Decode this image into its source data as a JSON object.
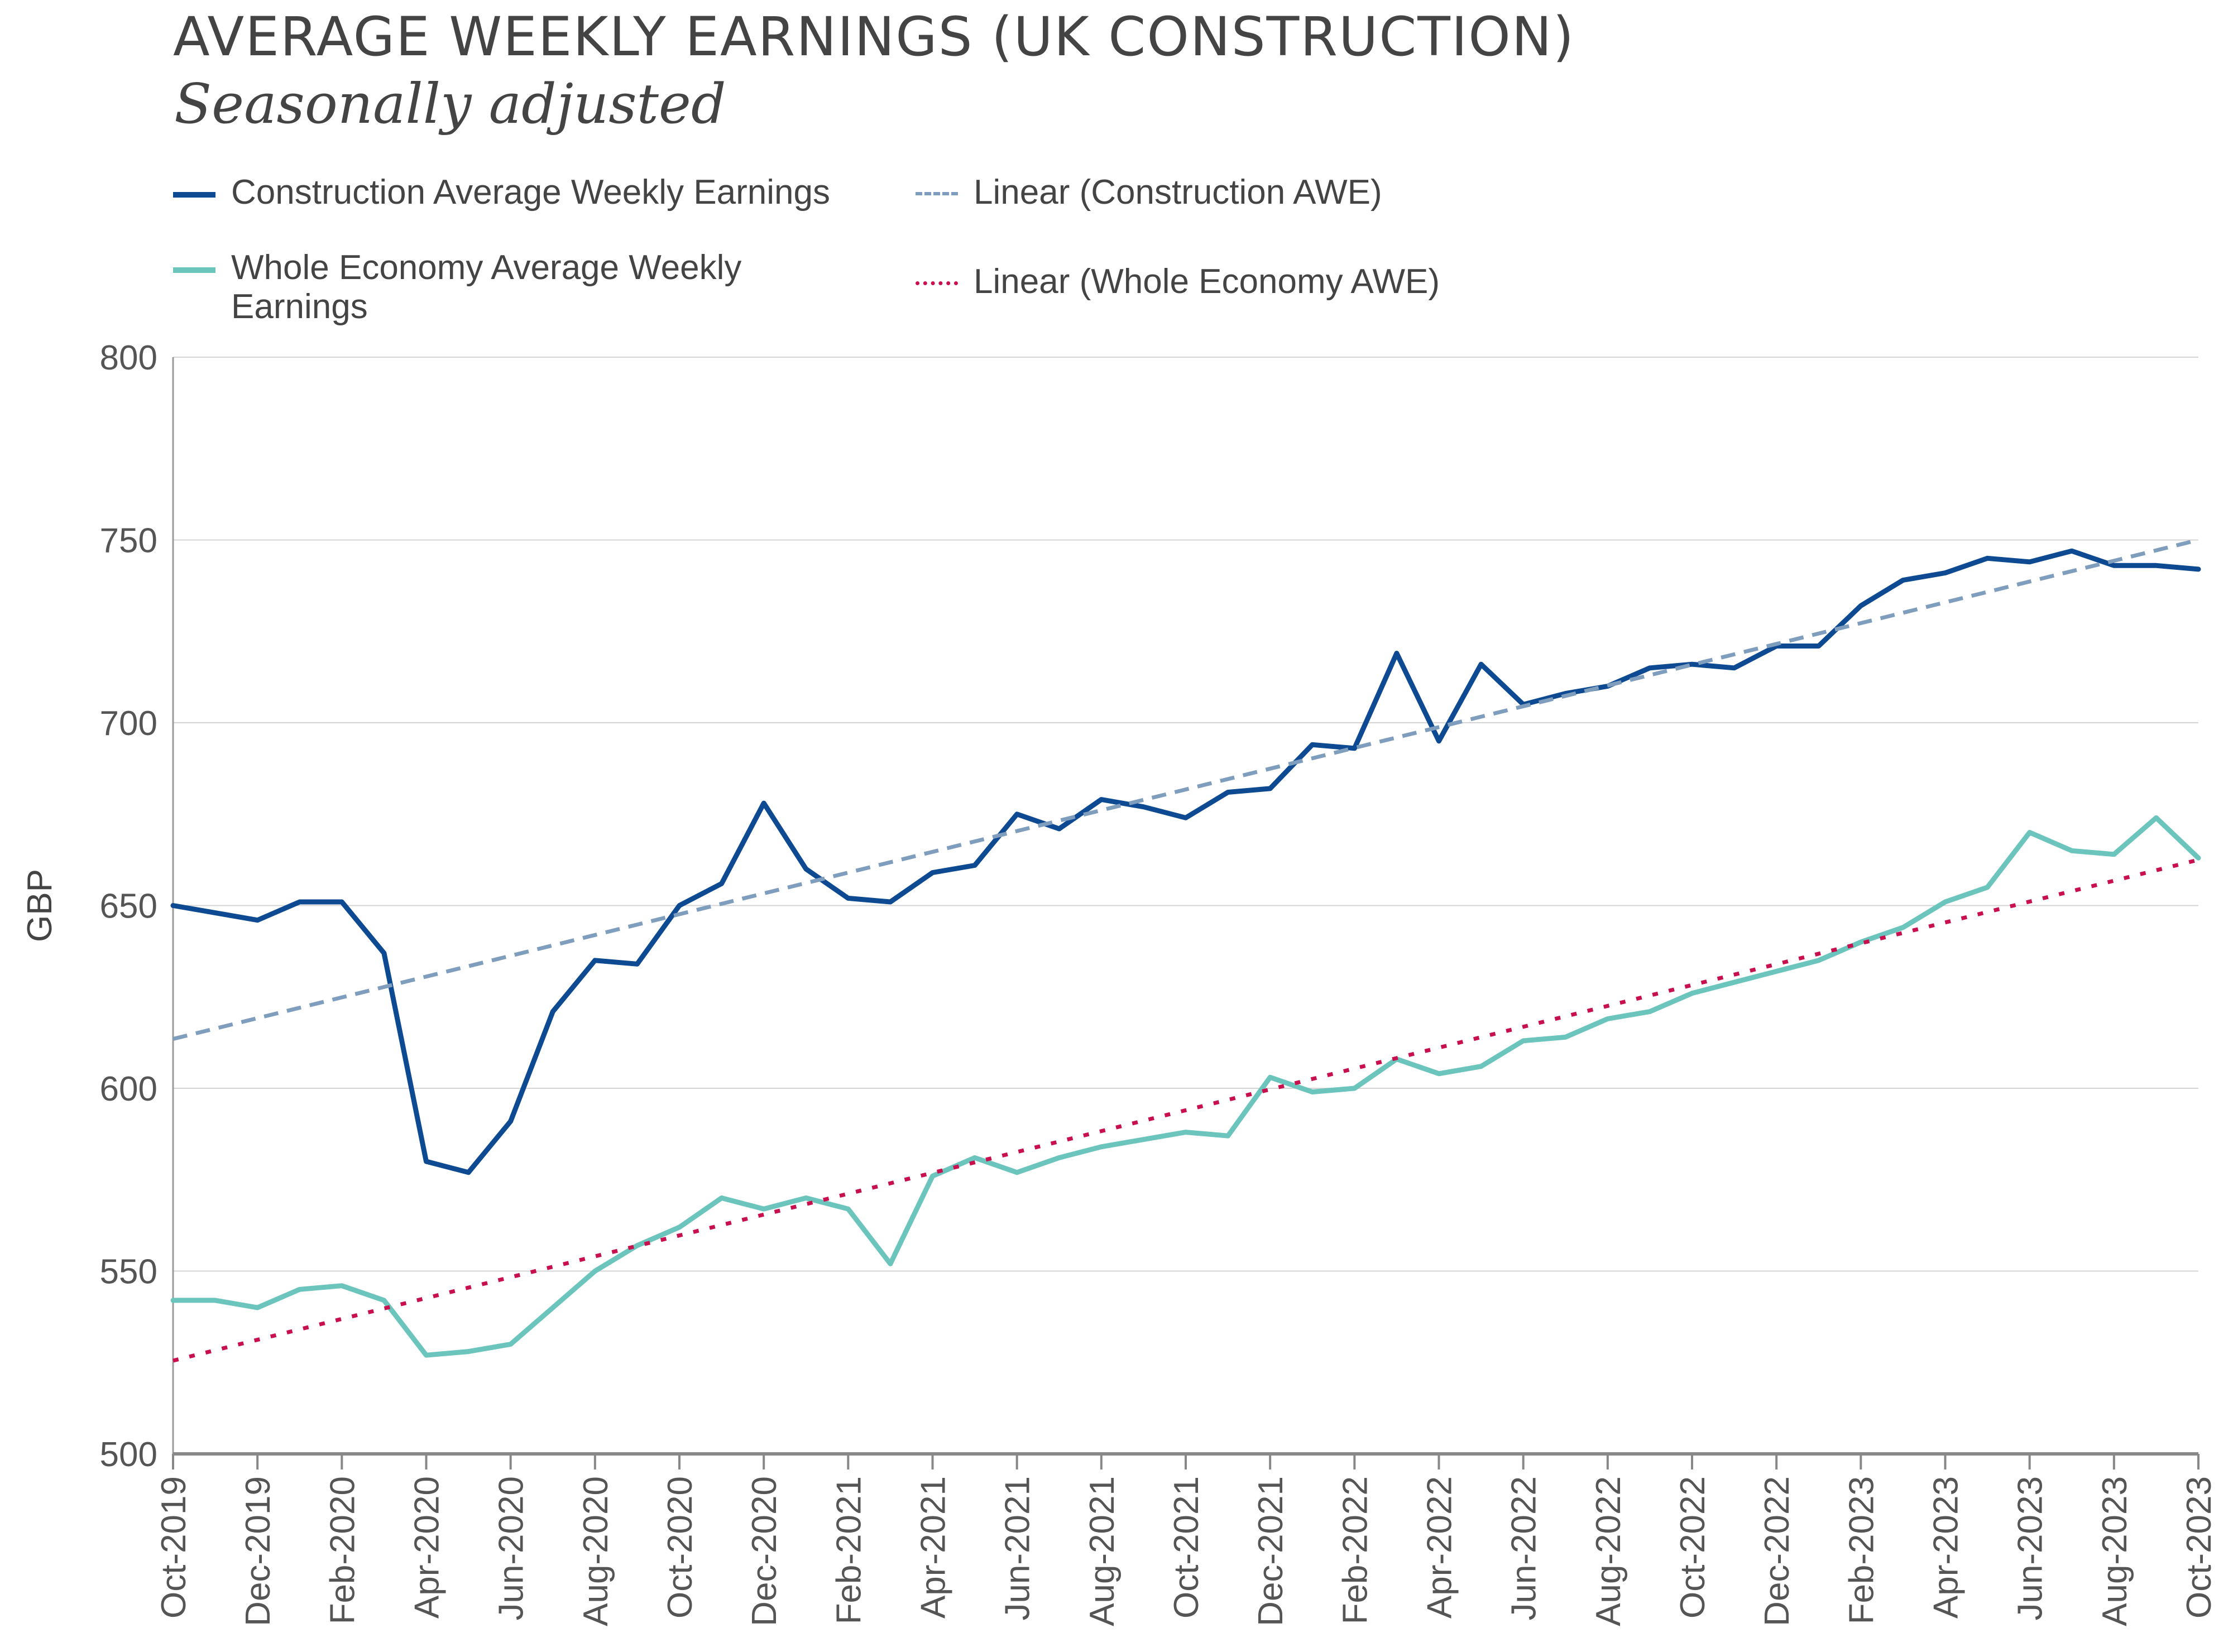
{
  "chart_data": {
    "type": "line",
    "title": "AVERAGE WEEKLY EARNINGS (UK CONSTRUCTION)",
    "subtitle": "Seasonally adjusted",
    "ylabel": "GBP",
    "xlabel": "",
    "ylim": [
      500,
      800
    ],
    "yticks": [
      "500",
      "550",
      "600",
      "650",
      "700",
      "750",
      "800"
    ],
    "grid": true,
    "legend_position": "top-left",
    "x": [
      "Oct-2019",
      "Nov-2019",
      "Dec-2019",
      "Jan-2020",
      "Feb-2020",
      "Mar-2020",
      "Apr-2020",
      "May-2020",
      "Jun-2020",
      "Jul-2020",
      "Aug-2020",
      "Sep-2020",
      "Oct-2020",
      "Nov-2020",
      "Dec-2020",
      "Jan-2021",
      "Feb-2021",
      "Mar-2021",
      "Apr-2021",
      "May-2021",
      "Jun-2021",
      "Jul-2021",
      "Aug-2021",
      "Sep-2021",
      "Oct-2021",
      "Nov-2021",
      "Dec-2021",
      "Jan-2022",
      "Feb-2022",
      "Mar-2022",
      "Apr-2022",
      "May-2022",
      "Jun-2022",
      "Jul-2022",
      "Aug-2022",
      "Sep-2022",
      "Oct-2022",
      "Nov-2022",
      "Dec-2022",
      "Jan-2023",
      "Feb-2023",
      "Mar-2023",
      "Apr-2023",
      "May-2023",
      "Jun-2023",
      "Jul-2023",
      "Aug-2023",
      "Sep-2023",
      "Oct-2023"
    ],
    "xticks": [
      "Oct-2019",
      "Dec-2019",
      "Feb-2020",
      "Apr-2020",
      "Jun-2020",
      "Aug-2020",
      "Oct-2020",
      "Dec-2020",
      "Feb-2021",
      "Apr-2021",
      "Jun-2021",
      "Aug-2021",
      "Oct-2021",
      "Dec-2021",
      "Feb-2022",
      "Apr-2022",
      "Jun-2022",
      "Aug-2022",
      "Oct-2022",
      "Dec-2022",
      "Feb-2023",
      "Apr-2023",
      "Jun-2023",
      "Aug-2023",
      "Oct-2023"
    ],
    "series": [
      {
        "name": "Construction Average Weekly Earnings",
        "style": "solid",
        "color": "#0d4a92",
        "values": [
          650,
          648,
          646,
          651,
          651,
          637,
          580,
          577,
          591,
          621,
          635,
          634,
          650,
          656,
          678,
          660,
          652,
          651,
          659,
          661,
          675,
          671,
          679,
          677,
          674,
          681,
          682,
          694,
          693,
          719,
          695,
          716,
          705,
          708,
          710,
          715,
          716,
          715,
          721,
          721,
          732,
          739,
          741,
          745,
          744,
          747,
          743,
          743,
          742
        ]
      },
      {
        "name": "Whole Economy Average Weekly Earnings",
        "style": "solid",
        "color": "#6cc5bd",
        "values": [
          542,
          542,
          540,
          545,
          546,
          542,
          527,
          528,
          530,
          540,
          550,
          557,
          562,
          570,
          567,
          570,
          567,
          552,
          576,
          581,
          577,
          581,
          584,
          586,
          588,
          587,
          603,
          599,
          600,
          608,
          604,
          606,
          613,
          614,
          619,
          621,
          626,
          629,
          632,
          635,
          640,
          644,
          651,
          655,
          670,
          665,
          664,
          674,
          663
        ]
      },
      {
        "name": "Linear (Construction AWE)",
        "style": "dashed",
        "color": "#7f9dbd",
        "trend": [
          613.5,
          750.0
        ]
      },
      {
        "name": "Linear (Whole Economy AWE)",
        "style": "dotted",
        "color": "#c8104e",
        "trend": [
          525.5,
          662.5
        ]
      }
    ]
  }
}
